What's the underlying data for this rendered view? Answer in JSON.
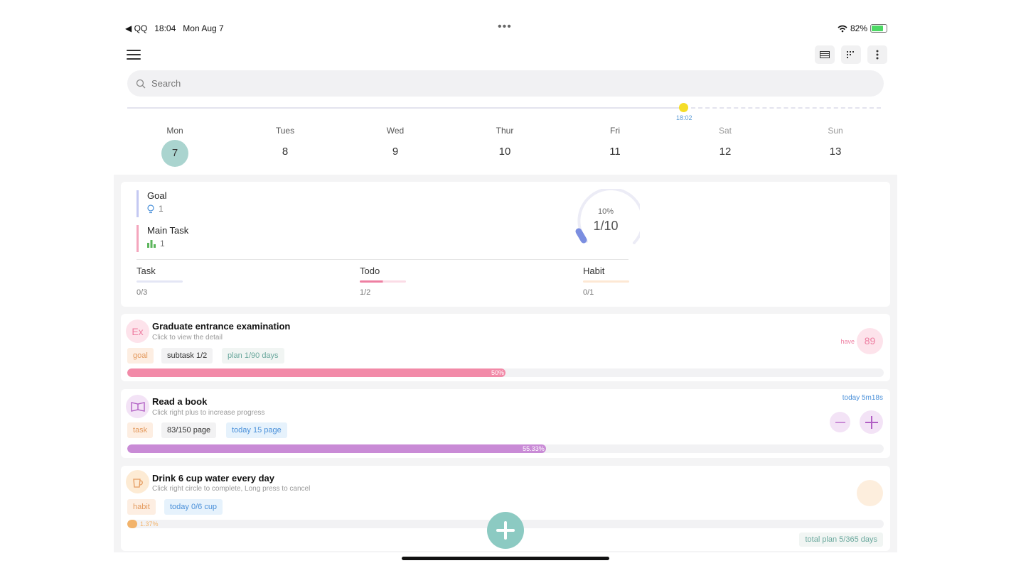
{
  "status": {
    "back_app": "◀ QQ",
    "time": "18:04",
    "date": "Mon Aug 7",
    "dots": "•••",
    "battery": "82%"
  },
  "search": {
    "placeholder": "Search"
  },
  "timeline": {
    "now_label": "18:02"
  },
  "week": [
    {
      "name": "Mon",
      "num": "7"
    },
    {
      "name": "Tues",
      "num": "8"
    },
    {
      "name": "Wed",
      "num": "9"
    },
    {
      "name": "Thur",
      "num": "10"
    },
    {
      "name": "Fri",
      "num": "11"
    },
    {
      "name": "Sat",
      "num": "12"
    },
    {
      "name": "Sun",
      "num": "13"
    }
  ],
  "summary": {
    "goal": {
      "label": "Goal",
      "count": "1"
    },
    "main_task": {
      "label": "Main Task",
      "count": "1"
    },
    "ring": {
      "percent": "10%",
      "fraction": "1/10",
      "progress": 0.1
    },
    "task": {
      "label": "Task",
      "value": "0/3",
      "progress": 0
    },
    "todo": {
      "label": "Todo",
      "value": "1/2",
      "progress": 0.5
    },
    "habit": {
      "label": "Habit",
      "value": "0/1",
      "progress": 0
    }
  },
  "items": [
    {
      "icon_text": "Ex",
      "title": "Graduate entrance examination",
      "subtitle": "Click to view the detail",
      "tags": [
        "goal",
        "subtask 1/2",
        "plan 1/90 days"
      ],
      "progress_label": "50%",
      "progress": 0.5,
      "right_label": "have",
      "right_value": "89"
    },
    {
      "title": "Read a book",
      "subtitle": "Click right plus to increase progress",
      "tags": [
        "task",
        "83/150 page",
        "today 15 page"
      ],
      "progress_label": "55.33%",
      "progress": 0.5533,
      "right_label": "today 5m18s"
    },
    {
      "title": "Drink 6 cup water every day",
      "subtitle": "Click right circle to complete, Long press to cancel",
      "tags": [
        "habit",
        "today 0/6 cup"
      ],
      "progress_label": "1.37%",
      "progress": 0.0137,
      "footer": "total plan 5/365 days"
    }
  ],
  "colors": {
    "accent": "#8ccac2",
    "goal_pink": "#f28aa8",
    "book_purple": "#c98bd6",
    "habit_orange": "#f2b36b"
  }
}
